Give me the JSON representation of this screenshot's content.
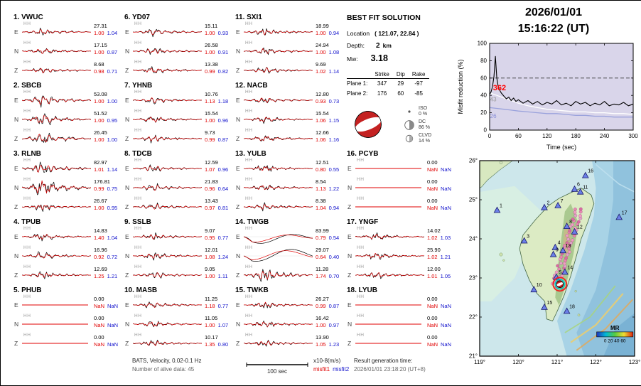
{
  "header": {
    "date": "2026/01/01",
    "time": "15:16:22  (UT)"
  },
  "solution": {
    "title": "BEST FIT SOLUTION",
    "location_label": "Location",
    "location_value": "( 121.07, 22.84 )",
    "depth_label": "Depth:",
    "depth_value": "2",
    "depth_unit": "km",
    "mw_label": "Mw:",
    "mw_value": "3.18",
    "plane_table": {
      "headers": [
        "Strike",
        "Dip",
        "Rake"
      ],
      "rows": [
        {
          "label": "Plane 1:",
          "strike": "347",
          "dip": "29",
          "rake": "-97"
        },
        {
          "label": "Plane 2:",
          "strike": "176",
          "dip": "60",
          "rake": "-85"
        }
      ]
    },
    "decomposition": [
      {
        "label": "ISO",
        "value": "0 %"
      },
      {
        "label": "DC",
        "value": "86 %"
      },
      {
        "label": "CLVD",
        "value": "14 %"
      }
    ],
    "beachball_color": "#c42222"
  },
  "stations": [
    {
      "num": "1.",
      "name": "VWUC",
      "components": [
        {
          "comp": "E",
          "ch": "HH",
          "amp": "27.31",
          "m1": "1.00",
          "m2": "1.04",
          "style": "normal"
        },
        {
          "comp": "N",
          "ch": "HH",
          "amp": "17.15",
          "m1": "1.00",
          "m2": "0.87",
          "style": "normal"
        },
        {
          "comp": "Z",
          "ch": "HH",
          "amp": "8.68",
          "m1": "0.98",
          "m2": "0.71",
          "style": "normal"
        }
      ]
    },
    {
      "num": "2.",
      "name": "SBCB",
      "components": [
        {
          "comp": "E",
          "ch": "HH",
          "amp": "53.08",
          "m1": "1.00",
          "m2": "1.00",
          "style": "big"
        },
        {
          "comp": "N",
          "ch": "HH",
          "amp": "51.52",
          "m1": "1.00",
          "m2": "0.95",
          "style": "big"
        },
        {
          "comp": "Z",
          "ch": "HH",
          "amp": "26.45",
          "m1": "1.00",
          "m2": "1.00",
          "style": "big"
        }
      ]
    },
    {
      "num": "3.",
      "name": "RLNB",
      "components": [
        {
          "comp": "E",
          "ch": "HH",
          "amp": "82.97",
          "m1": "1.01",
          "m2": "1.14",
          "style": "big"
        },
        {
          "comp": "N",
          "ch": "HH",
          "amp": "176.81",
          "m1": "0.99",
          "m2": "0.75",
          "style": "huge"
        },
        {
          "comp": "Z",
          "ch": "HH",
          "amp": "26.67",
          "m1": "1.00",
          "m2": "0.95",
          "style": "normal"
        }
      ]
    },
    {
      "num": "4.",
      "name": "TPUB",
      "components": [
        {
          "comp": "E",
          "ch": "HH",
          "amp": "14.83",
          "m1": "1.40",
          "m2": "1.04",
          "style": "normal"
        },
        {
          "comp": "N",
          "ch": "HH",
          "amp": "16.96",
          "m1": "0.92",
          "m2": "0.72",
          "style": "normal"
        },
        {
          "comp": "Z",
          "ch": "HH",
          "amp": "12.69",
          "m1": "1.25",
          "m2": "1.21",
          "style": "normal"
        }
      ]
    },
    {
      "num": "5.",
      "name": "PHUB",
      "components": [
        {
          "comp": "E",
          "ch": "HH",
          "amp": "0.00",
          "m1": "NaN",
          "m2": "NaN",
          "style": "flat"
        },
        {
          "comp": "N",
          "ch": "HH",
          "amp": "0.00",
          "m1": "NaN",
          "m2": "NaN",
          "style": "flat"
        },
        {
          "comp": "Z",
          "ch": "HH",
          "amp": "0.00",
          "m1": "NaN",
          "m2": "NaN",
          "style": "flat"
        }
      ]
    },
    {
      "num": "6.",
      "name": "YD07",
      "components": [
        {
          "comp": "E",
          "ch": "HH",
          "amp": "15.11",
          "m1": "1.00",
          "m2": "0.93",
          "style": "normal"
        },
        {
          "comp": "N",
          "ch": "HH",
          "amp": "26.58",
          "m1": "1.00",
          "m2": "0.91",
          "style": "normal"
        },
        {
          "comp": "Z",
          "ch": "HH",
          "amp": "13.38",
          "m1": "0.99",
          "m2": "0.82",
          "style": "normal"
        }
      ]
    },
    {
      "num": "7.",
      "name": "YHNB",
      "components": [
        {
          "comp": "E",
          "ch": "HH",
          "amp": "10.76",
          "m1": "1.13",
          "m2": "1.18",
          "style": "normal"
        },
        {
          "comp": "N",
          "ch": "HH",
          "amp": "15.54",
          "m1": "1.00",
          "m2": "0.96",
          "style": "normal"
        },
        {
          "comp": "Z",
          "ch": "HH",
          "amp": "9.73",
          "m1": "0.99",
          "m2": "0.87",
          "style": "normal"
        }
      ]
    },
    {
      "num": "8.",
      "name": "TDCB",
      "components": [
        {
          "comp": "E",
          "ch": "HH",
          "amp": "12.59",
          "m1": "1.07",
          "m2": "0.96",
          "style": "normal"
        },
        {
          "comp": "N",
          "ch": "HH",
          "amp": "21.83",
          "m1": "0.96",
          "m2": "0.64",
          "style": "normal"
        },
        {
          "comp": "Z",
          "ch": "HH",
          "amp": "13.43",
          "m1": "0.97",
          "m2": "0.81",
          "style": "normal"
        }
      ]
    },
    {
      "num": "9.",
      "name": "SSLB",
      "components": [
        {
          "comp": "E",
          "ch": "HH",
          "amp": "9.07",
          "m1": "0.95",
          "m2": "0.77",
          "style": "normal"
        },
        {
          "comp": "N",
          "ch": "HH",
          "amp": "12.01",
          "m1": "1.08",
          "m2": "1.24",
          "style": "normal"
        },
        {
          "comp": "Z",
          "ch": "HH",
          "amp": "9.05",
          "m1": "1.00",
          "m2": "1.11",
          "style": "normal"
        }
      ]
    },
    {
      "num": "10.",
      "name": "MASB",
      "components": [
        {
          "comp": "E",
          "ch": "HH",
          "amp": "11.25",
          "m1": "1.18",
          "m2": "0.77",
          "style": "normal"
        },
        {
          "comp": "N",
          "ch": "HH",
          "amp": "11.05",
          "m1": "1.00",
          "m2": "1.07",
          "style": "normal"
        },
        {
          "comp": "Z",
          "ch": "HH",
          "amp": "10.17",
          "m1": "1.35",
          "m2": "0.80",
          "style": "normal"
        }
      ]
    },
    {
      "num": "11.",
      "name": "SXI1",
      "components": [
        {
          "comp": "E",
          "ch": "HH",
          "amp": "18.99",
          "m1": "1.00",
          "m2": "0.94",
          "style": "normal"
        },
        {
          "comp": "N",
          "ch": "HH",
          "amp": "24.94",
          "m1": "1.00",
          "m2": "1.08",
          "style": "normal"
        },
        {
          "comp": "Z",
          "ch": "HH",
          "amp": "9.69",
          "m1": "1.02",
          "m2": "1.14",
          "style": "normal"
        }
      ]
    },
    {
      "num": "12.",
      "name": "NACB",
      "components": [
        {
          "comp": "E",
          "ch": "HH",
          "amp": "12.80",
          "m1": "0.93",
          "m2": "0.73",
          "style": "normal"
        },
        {
          "comp": "N",
          "ch": "HH",
          "amp": "15.54",
          "m1": "1.06",
          "m2": "1.15",
          "style": "normal"
        },
        {
          "comp": "Z",
          "ch": "HH",
          "amp": "12.66",
          "m1": "1.06",
          "m2": "1.16",
          "style": "normal"
        }
      ]
    },
    {
      "num": "13.",
      "name": "YULB",
      "components": [
        {
          "comp": "E",
          "ch": "HH",
          "amp": "12.51",
          "m1": "0.80",
          "m2": "0.55",
          "style": "normal"
        },
        {
          "comp": "N",
          "ch": "HH",
          "amp": "8.54",
          "m1": "1.13",
          "m2": "1.22",
          "style": "normal"
        },
        {
          "comp": "Z",
          "ch": "HH",
          "amp": "8.38",
          "m1": "1.04",
          "m2": "0.94",
          "style": "normal"
        }
      ]
    },
    {
      "num": "14.",
      "name": "TWGB",
      "components": [
        {
          "comp": "E",
          "ch": "HH",
          "amp": "83.99",
          "m1": "0.79",
          "m2": "0.54",
          "style": "lp"
        },
        {
          "comp": "N",
          "ch": "HH",
          "amp": "29.07",
          "m1": "0.64",
          "m2": "0.40",
          "style": "lp"
        },
        {
          "comp": "Z",
          "ch": "HH",
          "amp": "11.28",
          "m1": "1.74",
          "m2": "0.70",
          "style": "big"
        }
      ]
    },
    {
      "num": "15.",
      "name": "TWKB",
      "components": [
        {
          "comp": "E",
          "ch": "HH",
          "amp": "26.27",
          "m1": "0.99",
          "m2": "0.87",
          "style": "normal"
        },
        {
          "comp": "N",
          "ch": "HH",
          "amp": "16.42",
          "m1": "1.00",
          "m2": "0.97",
          "style": "normal"
        },
        {
          "comp": "Z",
          "ch": "HH",
          "amp": "13.90",
          "m1": "1.05",
          "m2": "1.23",
          "style": "normal"
        }
      ]
    },
    {
      "num": "16.",
      "name": "PCYB",
      "components": [
        {
          "comp": "E",
          "ch": "HH",
          "amp": "0.00",
          "m1": "NaN",
          "m2": "NaN",
          "style": "flat"
        },
        {
          "comp": "N",
          "ch": "HH",
          "amp": "0.00",
          "m1": "NaN",
          "m2": "NaN",
          "style": "flat"
        },
        {
          "comp": "Z",
          "ch": "HH",
          "amp": "0.00",
          "m1": "NaN",
          "m2": "NaN",
          "style": "flat"
        }
      ]
    },
    {
      "num": "17.",
      "name": "YNGF",
      "components": [
        {
          "comp": "E",
          "ch": "HH",
          "amp": "14.02",
          "m1": "1.02",
          "m2": "1.03",
          "style": "normal"
        },
        {
          "comp": "N",
          "ch": "HH",
          "amp": "25.90",
          "m1": "1.02",
          "m2": "1.21",
          "style": "normal"
        },
        {
          "comp": "Z",
          "ch": "HH",
          "amp": "12.00",
          "m1": "1.01",
          "m2": "1.05",
          "style": "normal"
        }
      ]
    },
    {
      "num": "18.",
      "name": "LYUB",
      "components": [
        {
          "comp": "E",
          "ch": "HH",
          "amp": "0.00",
          "m1": "NaN",
          "m2": "NaN",
          "style": "flat"
        },
        {
          "comp": "N",
          "ch": "HH",
          "amp": "0.00",
          "m1": "NaN",
          "m2": "NaN",
          "style": "flat"
        },
        {
          "comp": "Z",
          "ch": "HH",
          "amp": "0.00",
          "m1": "NaN",
          "m2": "NaN",
          "style": "flat"
        }
      ]
    }
  ],
  "footer": {
    "line1": "BATS, Velocity, 0.02-0.1 Hz",
    "line2": "Number of alive data: 45",
    "scale_label": "100 sec",
    "units_label": "x10-8(m/s)",
    "misfit1_label": "misfit1",
    "misfit2_label": "misfit2",
    "gen_label": "Result generation time:",
    "gen_value": "2026/01/01 23:18:20 (UT+8)"
  },
  "chart_data": [
    {
      "type": "line",
      "title": "",
      "xlabel": "Time (sec)",
      "ylabel": "Misfit reduction (%)",
      "xlim": [
        0,
        300
      ],
      "ylim": [
        0,
        100
      ],
      "xticks": [
        0,
        60,
        120,
        180,
        240,
        300
      ],
      "yticks": [
        0,
        20,
        40,
        60,
        80,
        100
      ],
      "plot_bg": "#d9d5ea",
      "threshold_line_y": 60,
      "annotations": [
        {
          "text": "362",
          "x": 7,
          "y": 46,
          "color": "#ff0000",
          "size": 11,
          "bold": true
        },
        {
          "text": "43",
          "x": 1,
          "y": 33,
          "color": "#999999",
          "size": 8,
          "bold": false
        },
        {
          "text": "26",
          "x": 1,
          "y": 14,
          "color": "#8a8fd8",
          "size": 8,
          "bold": false
        }
      ],
      "series": [
        {
          "name": "reference-2",
          "color": "#9aa2dc",
          "width": 1.3,
          "x": [
            0,
            15,
            30,
            45,
            60,
            80,
            100,
            120,
            140,
            160,
            180,
            200,
            220,
            240,
            260,
            280,
            300
          ],
          "y": [
            26,
            25,
            24,
            23,
            22,
            21,
            20,
            19,
            19,
            18,
            17,
            17,
            16,
            16,
            15,
            15,
            15
          ]
        },
        {
          "name": "reference-1",
          "color": "#ffffff",
          "width": 1.3,
          "x": [
            0,
            15,
            30,
            45,
            60,
            80,
            100,
            120,
            140,
            160,
            180,
            200,
            220,
            240,
            260,
            280,
            300
          ],
          "y": [
            43,
            40,
            37,
            34,
            31,
            28,
            26,
            24,
            23,
            22,
            21,
            21,
            20,
            20,
            19,
            19,
            18
          ]
        },
        {
          "name": "misfit-reduction-current",
          "color": "#000000",
          "width": 1.1,
          "x": [
            0,
            3,
            6,
            9,
            12,
            15,
            18,
            21,
            24,
            27,
            30,
            35,
            40,
            45,
            50,
            55,
            60,
            70,
            80,
            90,
            100,
            110,
            120,
            130,
            140,
            150,
            160,
            170,
            180,
            190,
            200,
            210,
            220,
            230,
            240,
            250,
            260,
            270,
            280,
            290,
            300
          ],
          "y": [
            41,
            44,
            50,
            62,
            85,
            60,
            50,
            46,
            43,
            41,
            39,
            36,
            38,
            34,
            37,
            33,
            35,
            31,
            34,
            30,
            33,
            29,
            32,
            30,
            34,
            29,
            31,
            28,
            33,
            30,
            32,
            28,
            31,
            29,
            33,
            28,
            30,
            29,
            32,
            28,
            30
          ]
        }
      ]
    },
    {
      "type": "scatter",
      "name": "station-map",
      "lon_range": [
        119,
        123
      ],
      "lat_range": [
        21,
        26
      ],
      "lon_ticks": [
        119,
        120,
        121,
        122,
        123
      ],
      "lon_tick_labels": [
        "119°",
        "120°",
        "121°",
        "122°",
        "123°"
      ],
      "lat_ticks": [
        21,
        22,
        23,
        24,
        25,
        26
      ],
      "lat_tick_labels": [
        "21°",
        "22°",
        "23°",
        "24°",
        "25°",
        "26°"
      ],
      "event": {
        "lon": 121.07,
        "lat": 22.84
      },
      "colorbar": {
        "label": "MR",
        "ticks": "0 20 40 60"
      },
      "stations": [
        {
          "id": "1",
          "lon": 119.45,
          "lat": 24.73
        },
        {
          "id": "2",
          "lon": 120.67,
          "lat": 24.8
        },
        {
          "id": "3",
          "lon": 120.15,
          "lat": 23.95
        },
        {
          "id": "4",
          "lon": 120.95,
          "lat": 23.78
        },
        {
          "id": "5",
          "lon": 120.98,
          "lat": 23.02
        },
        {
          "id": "6",
          "lon": 121.45,
          "lat": 25.27
        },
        {
          "id": "7",
          "lon": 121.02,
          "lat": 24.85
        },
        {
          "id": "8",
          "lon": 121.25,
          "lat": 24.32
        },
        {
          "id": "9",
          "lon": 120.9,
          "lat": 23.6
        },
        {
          "id": "10",
          "lon": 120.4,
          "lat": 22.7
        },
        {
          "id": "11",
          "lon": 121.6,
          "lat": 25.2
        },
        {
          "id": "12",
          "lon": 121.45,
          "lat": 24.18
        },
        {
          "id": "13",
          "lon": 121.15,
          "lat": 23.7
        },
        {
          "id": "14",
          "lon": 121.2,
          "lat": 23.15
        },
        {
          "id": "15",
          "lon": 120.67,
          "lat": 22.25
        },
        {
          "id": "16",
          "lon": 121.73,
          "lat": 25.62
        },
        {
          "id": "17",
          "lon": 122.6,
          "lat": 24.55
        },
        {
          "id": "18",
          "lon": 121.25,
          "lat": 22.15
        }
      ]
    }
  ]
}
